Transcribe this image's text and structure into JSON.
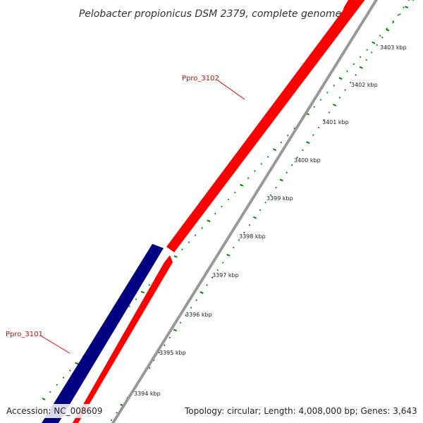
{
  "title": "Pelobacter propionicus DSM 2379, complete genome",
  "footer": {
    "accession": "Accession: NC_008609",
    "summary": "Topology: circular; Length: 4,008,000 bp; Genes: 3,643"
  },
  "genes": [
    {
      "name": "Ppro_3101",
      "strand": "minus",
      "color": "#000080"
    },
    {
      "name": "Ppro_3101",
      "strand": "plus",
      "color": "#ff0000",
      "visible_label": false
    },
    {
      "name": "Ppro_3102",
      "strand": "plus",
      "color": "#ff0000"
    }
  ],
  "gene_labels": [
    "Ppro_3101",
    "Ppro_3102"
  ],
  "scale_labels": [
    "3394 kbp",
    "3395 kbp",
    "3396 kbp",
    "3397 kbp",
    "3398 kbp",
    "3399 kbp",
    "3400 kbp",
    "3401 kbp",
    "3402 kbp",
    "3403 kbp"
  ],
  "colors": {
    "backbone": "#999999",
    "minus_strand": "#000080",
    "plus_strand": "#ff0000",
    "tick": "#008800",
    "label": "#e00000"
  }
}
